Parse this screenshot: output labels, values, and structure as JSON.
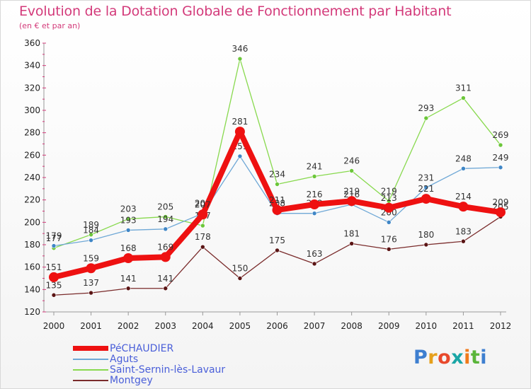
{
  "header": {
    "title": "Evolution de la Dotation Globale de Fonctionnement par Habitant",
    "subtitle": "(en € et par an)"
  },
  "chart_data": {
    "type": "line",
    "title": "Evolution de la Dotation Globale de Fonctionnement par Habitant",
    "subtitle": "(en € et par an)",
    "xlabel": "",
    "ylabel": "",
    "x": [
      "2000",
      "2001",
      "2002",
      "2003",
      "2004",
      "2005",
      "2006",
      "2007",
      "2008",
      "2009",
      "2010",
      "2011",
      "2012"
    ],
    "ylim": [
      120,
      360
    ],
    "yticks": [
      120,
      140,
      160,
      180,
      200,
      220,
      240,
      260,
      280,
      300,
      320,
      340,
      360
    ],
    "grid": false,
    "legend_position": "bottom-left",
    "series": [
      {
        "name": "Saint-Sernin-lès-Lavaur",
        "color": "#88d94e",
        "marker": "#6cc63a",
        "values": [
          177,
          189,
          203,
          205,
          197,
          346,
          234,
          241,
          246,
          219,
          293,
          311,
          269
        ],
        "labels": [
          "177",
          "189",
          "203",
          "205",
          "197",
          "346",
          "234",
          "241",
          "246",
          "219",
          "293",
          "311",
          "269"
        ]
      },
      {
        "name": "Aguts",
        "color": "#6fa8d6",
        "marker": "#3f86c6",
        "values": [
          179,
          184,
          193,
          194,
          208,
          259,
          208,
          208,
          216,
          200,
          231,
          248,
          249
        ],
        "labels": [
          "179",
          "184",
          "193",
          "194",
          "208",
          "259",
          "208",
          "208",
          "216",
          "200",
          "231",
          "248",
          "249"
        ]
      },
      {
        "name": "Montgey",
        "color": "#7a2b2b",
        "marker": "#5a1414",
        "values": [
          135,
          137,
          141,
          141,
          178,
          150,
          175,
          163,
          181,
          176,
          180,
          183,
          205
        ],
        "labels": [
          "135",
          "137",
          "141",
          "141",
          "178",
          "150",
          "175",
          "163",
          "181",
          "176",
          "180",
          "183",
          "205"
        ]
      },
      {
        "name": "PéCHAUDIER",
        "color": "#ee1111",
        "marker": "#ee1111",
        "bold": true,
        "values": [
          151,
          159,
          168,
          169,
          207,
          281,
          211,
          216,
          219,
          213,
          221,
          214,
          209
        ],
        "labels": [
          "151",
          "159",
          "168",
          "169",
          "207",
          "281",
          "211",
          "216",
          "219",
          "213",
          "221",
          "214",
          "209"
        ]
      }
    ]
  },
  "legend": {
    "items": [
      {
        "label": "PéCHAUDIER",
        "color": "#ee1111"
      },
      {
        "label": "Aguts",
        "color": "#6fa8d6"
      },
      {
        "label": "Saint-Sernin-lès-Lavaur",
        "color": "#88d94e"
      },
      {
        "label": "Montgey",
        "color": "#7a2b2b"
      }
    ]
  },
  "logo": {
    "letters": [
      {
        "ch": "P",
        "color": "#3e7fd0"
      },
      {
        "ch": "r",
        "color": "#e6a01c"
      },
      {
        "ch": "o",
        "color": "#e8492c"
      },
      {
        "ch": "x",
        "color": "#1aa6a6"
      },
      {
        "ch": "i",
        "color": "#f07a1a"
      },
      {
        "ch": "t",
        "color": "#5ab53a"
      },
      {
        "ch": "i",
        "color": "#3e7fd0"
      }
    ],
    "text": "Proxiti"
  }
}
